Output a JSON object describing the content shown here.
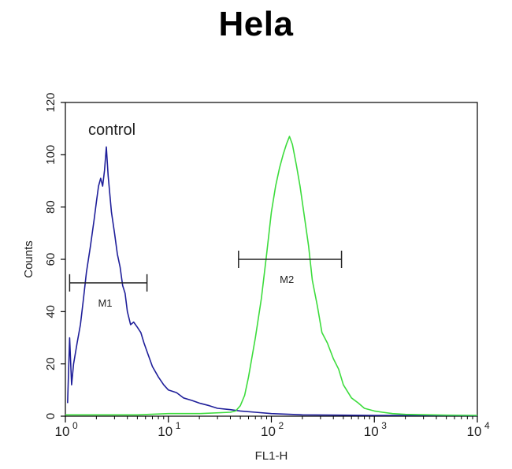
{
  "chart_data": {
    "type": "line",
    "title": "Hela",
    "xlabel": "FL1-H",
    "ylabel": "Counts",
    "x_scale": "log",
    "xlim": [
      1,
      10000
    ],
    "ylim": [
      0,
      120
    ],
    "x_ticks": [
      {
        "value": 1,
        "base": "10",
        "exp": "0"
      },
      {
        "value": 10,
        "base": "10",
        "exp": "1"
      },
      {
        "value": 100,
        "base": "10",
        "exp": "2"
      },
      {
        "value": 1000,
        "base": "10",
        "exp": "3"
      },
      {
        "value": 10000,
        "base": "10",
        "exp": "4"
      }
    ],
    "y_ticks": [
      0,
      20,
      40,
      60,
      80,
      100,
      120
    ],
    "grid": false,
    "series": [
      {
        "name": "control",
        "color": "#1f1f9a",
        "x": [
          1.05,
          1.1,
          1.15,
          1.2,
          1.3,
          1.4,
          1.5,
          1.6,
          1.75,
          1.9,
          2.0,
          2.1,
          2.2,
          2.3,
          2.4,
          2.5,
          2.6,
          2.7,
          2.8,
          3.0,
          3.2,
          3.4,
          3.6,
          3.8,
          4.0,
          4.3,
          4.6,
          5.0,
          5.4,
          5.8,
          6.3,
          7.0,
          8.0,
          9.0,
          10.0,
          12.0,
          14.0,
          17.0,
          20.0,
          25.0,
          30.0,
          40.0,
          50.0,
          70.0,
          100.0,
          200.0,
          500.0,
          1000.0,
          3000.0,
          10000.0
        ],
        "y": [
          5,
          30,
          12,
          20,
          28,
          35,
          45,
          55,
          65,
          75,
          82,
          88,
          91,
          88,
          94,
          103,
          92,
          85,
          78,
          70,
          62,
          57,
          50,
          47,
          40,
          35,
          36,
          34,
          32,
          28,
          24,
          19,
          15,
          12,
          10,
          9,
          7,
          6,
          5,
          4,
          3,
          2.5,
          2,
          1.5,
          1,
          0.5,
          0.4,
          0.3,
          0.3,
          0.2
        ]
      },
      {
        "name": "",
        "color": "#3ddc3d",
        "x": [
          1.0,
          5.0,
          10.0,
          20.0,
          40.0,
          45.0,
          50.0,
          55.0,
          60.0,
          70.0,
          80.0,
          90.0,
          100.0,
          110.0,
          120.0,
          130.0,
          140.0,
          150.0,
          160.0,
          175.0,
          190.0,
          210.0,
          230.0,
          250.0,
          280.0,
          310.0,
          350.0,
          400.0,
          450.0,
          500.0,
          600.0,
          700.0,
          800.0,
          1000.0,
          1200.0,
          1500.0,
          2000.0,
          5000.0,
          10000.0
        ],
        "y": [
          0.5,
          0.5,
          1,
          1,
          1.5,
          2,
          4,
          8,
          15,
          30,
          45,
          62,
          78,
          88,
          95,
          100,
          104,
          107,
          104,
          96,
          88,
          76,
          65,
          52,
          42,
          32,
          28,
          22,
          18,
          12,
          7,
          5,
          3,
          2,
          1.5,
          1,
          0.7,
          0.4,
          0.3
        ]
      }
    ],
    "markers": [
      {
        "label": "M1",
        "x_start": 1.1,
        "x_end": 6.2,
        "y": 51
      },
      {
        "label": "M2",
        "x_start": 48,
        "x_end": 480,
        "y": 60
      }
    ],
    "annotations": [
      {
        "text": "control"
      }
    ]
  }
}
